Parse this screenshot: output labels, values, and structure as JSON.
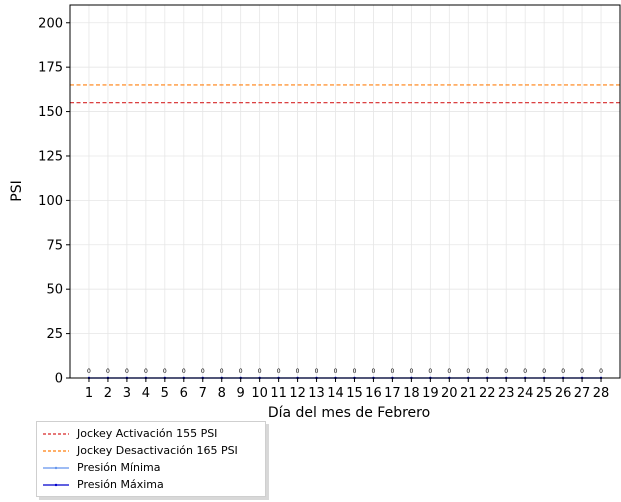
{
  "chart_data": {
    "type": "line",
    "xlabel": "Día del mes de  Febrero",
    "ylabel": "PSI",
    "x": [
      1,
      2,
      3,
      4,
      5,
      6,
      7,
      8,
      9,
      10,
      11,
      12,
      13,
      14,
      15,
      16,
      17,
      18,
      19,
      20,
      21,
      22,
      23,
      24,
      25,
      26,
      27,
      28
    ],
    "x_tick_labels": [
      "1",
      "2",
      "3",
      "4",
      "5",
      "6",
      "7",
      "8",
      "9",
      "10",
      "11",
      "12",
      "13",
      "14",
      "15",
      "16",
      "17",
      "18",
      "19",
      "20",
      "21",
      "22",
      "23",
      "24",
      "25",
      "26",
      "27",
      "28"
    ],
    "xlim": [
      0,
      29
    ],
    "ylim": [
      0,
      210
    ],
    "y_ticks": [
      0,
      25,
      50,
      75,
      100,
      125,
      150,
      175,
      200
    ],
    "grid": true,
    "reference_lines": [
      {
        "name": "Jockey Activación 155 PSI",
        "value": 155,
        "color": "#d62728",
        "style": "dashed"
      },
      {
        "name": "Jockey Desactivación 165 PSI",
        "value": 165,
        "color": "#ff7f0e",
        "style": "dashed"
      }
    ],
    "series": [
      {
        "name": "Presión Mínima",
        "color": "#6495ed",
        "values": [
          0,
          0,
          0,
          0,
          0,
          0,
          0,
          0,
          0,
          0,
          0,
          0,
          0,
          0,
          0,
          0,
          0,
          0,
          0,
          0,
          0,
          0,
          0,
          0,
          0,
          0,
          0,
          0
        ]
      },
      {
        "name": "Presión Máxima",
        "color": "#0000cd",
        "values": [
          0,
          0,
          0,
          0,
          0,
          0,
          0,
          0,
          0,
          0,
          0,
          0,
          0,
          0,
          0,
          0,
          0,
          0,
          0,
          0,
          0,
          0,
          0,
          0,
          0,
          0,
          0,
          0
        ]
      }
    ],
    "data_labels": [
      "0",
      "0",
      "0",
      "0",
      "0",
      "0",
      "0",
      "0",
      "0",
      "0",
      "0",
      "0",
      "0",
      "0",
      "0",
      "0",
      "0",
      "0",
      "0",
      "0",
      "0",
      "0",
      "0",
      "0",
      "0",
      "0",
      "0",
      "0"
    ],
    "legend_position": "below-left"
  }
}
